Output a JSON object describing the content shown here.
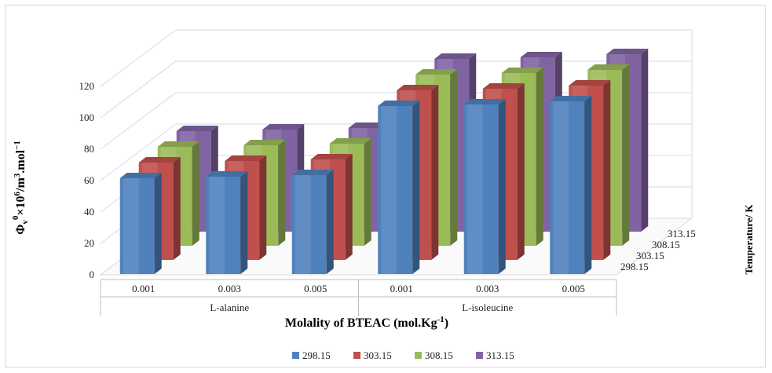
{
  "chart_data": {
    "type": "bar",
    "style": "3d-clustered-column",
    "xlabel": "Molality of BTEAC (mol.Kg",
    "xlabel_sup": "-1",
    "xlabel_end": ")",
    "ylabel": "Φv0×106/m3.mol−1",
    "zlabel": "Temperature/ K",
    "ylim": [
      0,
      120
    ],
    "yticks": [
      "0",
      "20",
      "40",
      "60",
      "80",
      "100",
      "120"
    ],
    "groups": [
      {
        "label": "L-alanine",
        "categories": [
          "0.001",
          "0.003",
          "0.005"
        ]
      },
      {
        "label": "L-isoleucine",
        "categories": [
          "0.001",
          "0.003",
          "0.005"
        ]
      }
    ],
    "series": [
      {
        "name": "298.15",
        "color": "#4f81bd",
        "values": [
          61,
          62,
          63,
          107,
          108,
          110
        ]
      },
      {
        "name": "303.15",
        "color": "#c0504d",
        "values": [
          62,
          63,
          64,
          108,
          109,
          111
        ]
      },
      {
        "name": "308.15",
        "color": "#9bbb59",
        "values": [
          63,
          64,
          65,
          109,
          110,
          112
        ]
      },
      {
        "name": "313.15",
        "color": "#8064a2",
        "values": [
          64,
          65,
          66,
          110,
          111,
          113
        ]
      }
    ],
    "grid": true,
    "legend": "bottom"
  }
}
